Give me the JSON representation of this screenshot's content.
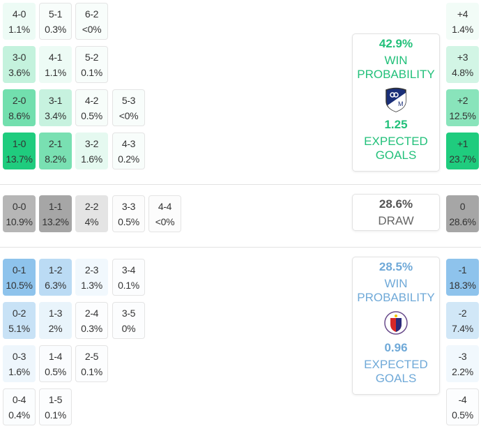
{
  "colors": {
    "home": "#1fcc7e",
    "draw": "#a6a6a6",
    "away": "#8ec3ec",
    "home_text": "#22c07a",
    "away_text": "#6fa9d8",
    "draw_text": "#555555"
  },
  "home_grid": [
    [
      {
        "score": "4-0",
        "pct": "1.1%",
        "v": 1.1
      },
      {
        "score": "5-1",
        "pct": "0.3%",
        "v": 0.3
      },
      {
        "score": "6-2",
        "pct": "<0%",
        "v": 0
      }
    ],
    [
      {
        "score": "3-0",
        "pct": "3.6%",
        "v": 3.6
      },
      {
        "score": "4-1",
        "pct": "1.1%",
        "v": 1.1
      },
      {
        "score": "5-2",
        "pct": "0.1%",
        "v": 0.1
      }
    ],
    [
      {
        "score": "2-0",
        "pct": "8.6%",
        "v": 8.6
      },
      {
        "score": "3-1",
        "pct": "3.4%",
        "v": 3.4
      },
      {
        "score": "4-2",
        "pct": "0.5%",
        "v": 0.5
      },
      {
        "score": "5-3",
        "pct": "<0%",
        "v": 0
      }
    ],
    [
      {
        "score": "1-0",
        "pct": "13.7%",
        "v": 13.7
      },
      {
        "score": "2-1",
        "pct": "8.2%",
        "v": 8.2
      },
      {
        "score": "3-2",
        "pct": "1.6%",
        "v": 1.6
      },
      {
        "score": "4-3",
        "pct": "0.2%",
        "v": 0.2
      }
    ]
  ],
  "draw_grid": [
    [
      {
        "score": "0-0",
        "pct": "10.9%",
        "v": 10.9
      },
      {
        "score": "1-1",
        "pct": "13.2%",
        "v": 13.2
      },
      {
        "score": "2-2",
        "pct": "4%",
        "v": 4
      },
      {
        "score": "3-3",
        "pct": "0.5%",
        "v": 0.5
      },
      {
        "score": "4-4",
        "pct": "<0%",
        "v": 0
      }
    ]
  ],
  "away_grid": [
    [
      {
        "score": "0-1",
        "pct": "10.5%",
        "v": 10.5
      },
      {
        "score": "1-2",
        "pct": "6.3%",
        "v": 6.3
      },
      {
        "score": "2-3",
        "pct": "1.3%",
        "v": 1.3
      },
      {
        "score": "3-4",
        "pct": "0.1%",
        "v": 0.1
      }
    ],
    [
      {
        "score": "0-2",
        "pct": "5.1%",
        "v": 5.1
      },
      {
        "score": "1-3",
        "pct": "2%",
        "v": 2
      },
      {
        "score": "2-4",
        "pct": "0.3%",
        "v": 0.3
      },
      {
        "score": "3-5",
        "pct": "0%",
        "v": 0
      }
    ],
    [
      {
        "score": "0-3",
        "pct": "1.6%",
        "v": 1.6
      },
      {
        "score": "1-4",
        "pct": "0.5%",
        "v": 0.5
      },
      {
        "score": "2-5",
        "pct": "0.1%",
        "v": 0.1
      }
    ],
    [
      {
        "score": "0-4",
        "pct": "0.4%",
        "v": 0.4
      },
      {
        "score": "1-5",
        "pct": "0.1%",
        "v": 0.1
      }
    ]
  ],
  "margins_home": [
    {
      "score": "+4",
      "pct": "1.4%",
      "v": 1.4
    },
    {
      "score": "+3",
      "pct": "4.8%",
      "v": 4.8
    },
    {
      "score": "+2",
      "pct": "12.5%",
      "v": 12.5
    },
    {
      "score": "+1",
      "pct": "23.7%",
      "v": 23.7
    }
  ],
  "margins_draw": [
    {
      "score": "0",
      "pct": "28.6%",
      "v": 28.6
    }
  ],
  "margins_away": [
    {
      "score": "-1",
      "pct": "18.3%",
      "v": 18.3
    },
    {
      "score": "-2",
      "pct": "7.4%",
      "v": 7.4
    },
    {
      "score": "-3",
      "pct": "2.2%",
      "v": 2.2
    },
    {
      "score": "-4",
      "pct": "0.5%",
      "v": 0.5
    }
  ],
  "home": {
    "win_prob": "42.9%",
    "win_label_1": "WIN",
    "win_label_2": "PROBABILITY",
    "xg": "1.25",
    "xg_label_1": "EXPECTED",
    "xg_label_2": "GOALS",
    "logo": "millonarios-crest-icon"
  },
  "draw": {
    "prob": "28.6%",
    "label": "DRAW"
  },
  "away": {
    "win_prob": "28.5%",
    "win_label_1": "WIN",
    "win_label_2": "PROBABILITY",
    "xg": "0.96",
    "xg_label_1": "EXPECTED",
    "xg_label_2": "GOALS",
    "logo": "deportivo-pasto-crest-icon"
  }
}
